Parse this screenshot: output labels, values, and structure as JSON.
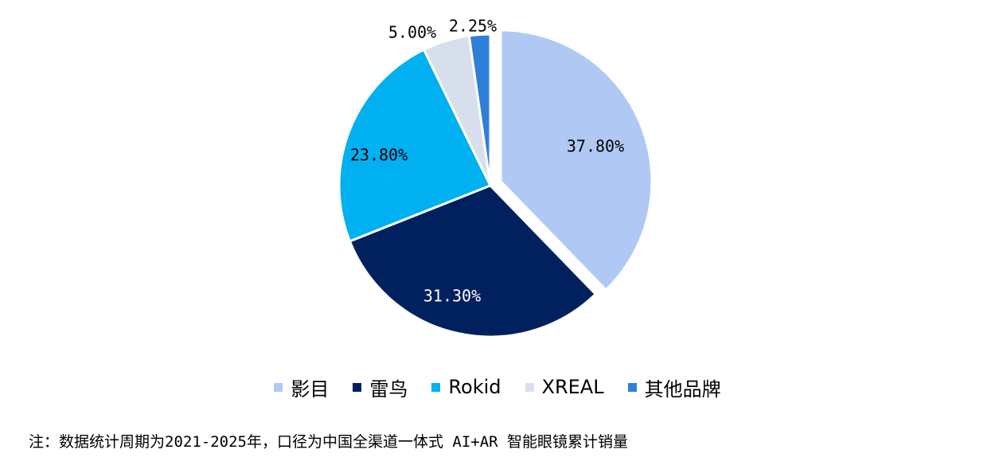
{
  "chart_data": {
    "type": "pie",
    "slices": [
      {
        "label": "影目",
        "value": 37.8,
        "value_label": "37.80%",
        "color": "#B0C9F4",
        "exploded": true
      },
      {
        "label": "雷鸟",
        "value": 31.3,
        "value_label": "31.30%",
        "color": "#00215E"
      },
      {
        "label": "Rokid",
        "value": 23.8,
        "value_label": "23.80%",
        "color": "#00B0F0"
      },
      {
        "label": "XREAL",
        "value": 5.0,
        "value_label": "5.00%",
        "color": "#D6DFEB"
      },
      {
        "label": "其他品牌",
        "value": 2.25,
        "value_label": "2.25%",
        "color": "#2E7FD9"
      }
    ],
    "legend_position": "bottom"
  },
  "footnote": "注：数据统计周期为2021-2025年，口径为中国全渠道一体式 AI+AR 智能眼镜累计销量"
}
